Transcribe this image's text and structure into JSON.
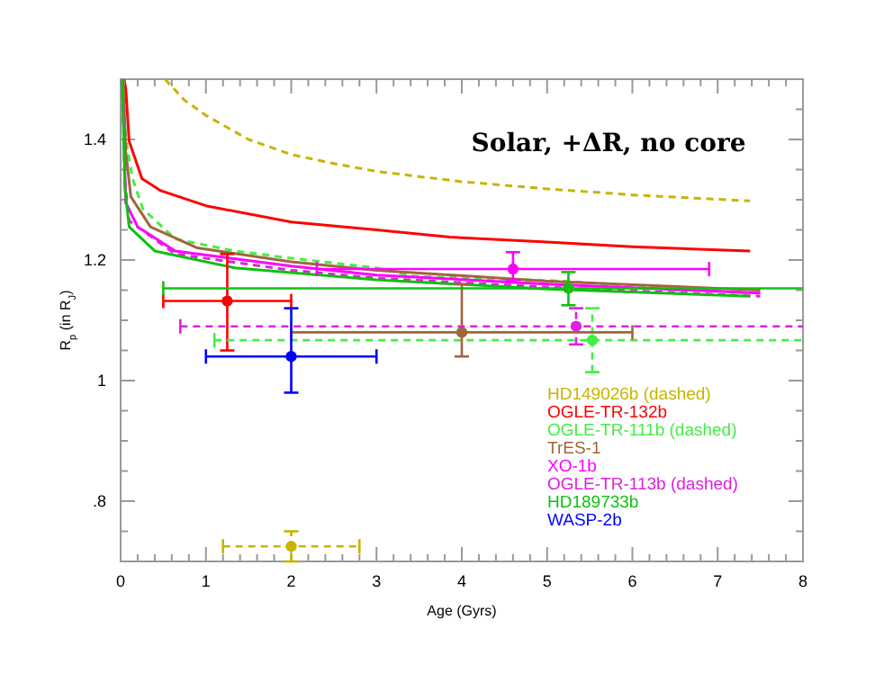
{
  "chart_data": {
    "type": "scatter",
    "xlabel": "Age (Gyrs)",
    "ylabel": "R$_{p}$ (in R$_{J}$)",
    "annotations": [
      "Solar, +ΔR, no core"
    ],
    "xlim": [
      0,
      8
    ],
    "ylim": [
      0.7,
      1.5
    ],
    "xticks": [
      0,
      {
        "value": 0.2,
        "label": null
      },
      {
        "value": 0.4,
        "label": null
      },
      {
        "value": 0.6,
        "label": null
      },
      {
        "value": 0.8,
        "label": null
      },
      1,
      {
        "value": 1.2,
        "label": null
      },
      {
        "value": 1.4,
        "label": null
      },
      {
        "value": 1.6,
        "label": null
      },
      {
        "value": 1.8,
        "label": null
      },
      2,
      {
        "value": 2.2,
        "label": null
      },
      {
        "value": 2.4,
        "label": null
      },
      {
        "value": 2.6,
        "label": null
      },
      {
        "value": 2.8,
        "label": null
      },
      3,
      {
        "value": 3.2,
        "label": null
      },
      {
        "value": 3.4,
        "label": null
      },
      {
        "value": 3.6,
        "label": null
      },
      {
        "value": 3.8,
        "label": null
      },
      4,
      {
        "value": 4.2,
        "label": null
      },
      {
        "value": 4.4,
        "label": null
      },
      {
        "value": 4.6,
        "label": null
      },
      {
        "value": 4.8,
        "label": null
      },
      5,
      {
        "value": 5.2,
        "label": null
      },
      {
        "value": 5.4,
        "label": null
      },
      {
        "value": 5.6,
        "label": null
      },
      {
        "value": 5.8,
        "label": null
      },
      6,
      {
        "value": 6.2,
        "label": null
      },
      {
        "value": 6.4,
        "label": null
      },
      {
        "value": 6.6,
        "label": null
      },
      {
        "value": 6.8,
        "label": null
      },
      7,
      {
        "value": 7.2,
        "label": null
      },
      {
        "value": 7.4,
        "label": null
      },
      {
        "value": 7.6,
        "label": null
      },
      {
        "value": 7.8,
        "label": null
      },
      8
    ],
    "yticks": [
      {
        "value": 0.75,
        "label": null
      },
      {
        "value": 0.8,
        "label": ".8"
      },
      {
        "value": 0.85,
        "label": null
      },
      {
        "value": 0.9,
        "label": null
      },
      {
        "value": 0.95,
        "label": null
      },
      1,
      {
        "value": 1.05,
        "label": null
      },
      {
        "value": 1.1,
        "label": null
      },
      {
        "value": 1.15,
        "label": null
      },
      1.2,
      {
        "value": 1.25,
        "label": null
      },
      {
        "value": 1.3,
        "label": null
      },
      {
        "value": 1.35,
        "label": null
      },
      1.4,
      {
        "value": 1.45,
        "label": null
      }
    ],
    "legend": "bottom right",
    "marker": "circle",
    "series": [
      {
        "type": "line",
        "marker": "none",
        "color": "#c8b400",
        "line_style": "dashed",
        "x": [
          0.52,
          0.75,
          1,
          1.5,
          2,
          2.5,
          3,
          4,
          5,
          6,
          7.38
        ],
        "values": [
          1.5,
          1.465,
          1.44,
          1.4,
          1.375,
          1.36,
          1.347,
          1.33,
          1.318,
          1.308,
          1.298
        ]
      },
      {
        "type": "line",
        "marker": "none",
        "color": "#ff0000",
        "line_style": "solid",
        "x": [
          0.04,
          0.06,
          0.1,
          0.25,
          0.47,
          1,
          2,
          3,
          3.86,
          5,
          6,
          7.38
        ],
        "values": [
          1.5,
          1.485,
          1.397,
          1.335,
          1.315,
          1.29,
          1.263,
          1.25,
          1.238,
          1.23,
          1.222,
          1.215
        ]
      },
      {
        "type": "line",
        "marker": "none",
        "color": "#44ee44",
        "line_style": "dashed",
        "x": [
          0.03,
          0.06,
          0.14,
          0.26,
          0.64,
          1.34,
          2,
          3,
          3.44,
          5.2,
          7.38
        ],
        "values": [
          1.5,
          1.4,
          1.335,
          1.285,
          1.235,
          1.215,
          1.203,
          1.187,
          1.173,
          1.165,
          1.145
        ]
      },
      {
        "type": "line",
        "marker": "none",
        "color": "#a0663c",
        "line_style": "solid",
        "x": [
          0.03,
          0.06,
          0.12,
          0.35,
          0.9,
          2,
          3,
          5,
          7.5
        ],
        "values": [
          1.5,
          1.38,
          1.305,
          1.255,
          1.22,
          1.197,
          1.183,
          1.165,
          1.15
        ]
      },
      {
        "type": "line",
        "marker": "none",
        "color": "#ff00ff",
        "line_style": "solid",
        "x": [
          0.02,
          0.06,
          0.2,
          0.64,
          2,
          3,
          5,
          7.5
        ],
        "values": [
          1.5,
          1.295,
          1.255,
          1.215,
          1.19,
          1.175,
          1.16,
          1.145
        ]
      },
      {
        "type": "line",
        "marker": "none",
        "color": "#e020e0",
        "line_style": "dashed",
        "x": [
          0.02,
          0.05,
          0.1,
          0.64,
          2,
          3,
          5,
          7.5
        ],
        "values": [
          1.5,
          1.33,
          1.265,
          1.21,
          1.183,
          1.17,
          1.155,
          1.14
        ]
      },
      {
        "type": "line",
        "marker": "none",
        "color": "#10c010",
        "line_style": "solid",
        "x": [
          0.02,
          0.05,
          0.1,
          0.4,
          1.34,
          3,
          5,
          7.38
        ],
        "values": [
          1.5,
          1.32,
          1.255,
          1.215,
          1.187,
          1.167,
          1.152,
          1.14
        ]
      },
      {
        "name": "HD149026b (dashed)",
        "color": "#c8b400",
        "line_style": "dashed",
        "x": [
          2
        ],
        "values": [
          0.725
        ],
        "errors": [
          [
            0.7,
            0.75
          ]
        ],
        "xerrors": [
          [
            1.2,
            2.8
          ]
        ]
      },
      {
        "name": "OGLE-TR-132b",
        "color": "#ff0000",
        "line_style": "solid",
        "x": [
          1.25
        ],
        "values": [
          1.132
        ],
        "errors": [
          [
            1.05,
            1.21
          ]
        ],
        "xerrors": [
          [
            0.5,
            2.0
          ]
        ]
      },
      {
        "name": "OGLE-TR-111b (dashed)",
        "color": "#44ee44",
        "line_style": "dashed",
        "x": [
          5.53
        ],
        "values": [
          1.067
        ],
        "errors": [
          [
            1.014,
            1.12
          ]
        ],
        "xerrors": [
          [
            1.1,
            8
          ]
        ]
      },
      {
        "name": "TrES-1",
        "color": "#a0663c",
        "line_style": "solid",
        "x": [
          4
        ],
        "values": [
          1.08
        ],
        "errors": [
          [
            1.04,
            1.16
          ]
        ],
        "xerrors": [
          [
            2.0,
            6.0
          ]
        ]
      },
      {
        "name": "XO-1b",
        "color": "#ff00ff",
        "line_style": "solid",
        "x": [
          4.6
        ],
        "values": [
          1.185
        ],
        "errors": [
          [
            1.167,
            1.213
          ]
        ],
        "xerrors": [
          [
            2.3,
            6.9
          ]
        ]
      },
      {
        "name": "OGLE-TR-113b (dashed)",
        "color": "#e020e0",
        "line_style": "dashed",
        "x": [
          5.34
        ],
        "values": [
          1.09
        ],
        "errors": [
          [
            1.06,
            1.12
          ]
        ],
        "xerrors": [
          [
            0.7,
            8
          ]
        ]
      },
      {
        "name": "HD189733b",
        "color": "#10c010",
        "line_style": "solid",
        "x": [
          5.25
        ],
        "values": [
          1.153
        ],
        "errors": [
          [
            1.125,
            1.18
          ]
        ],
        "xerrors": [
          [
            0.5,
            8
          ]
        ]
      },
      {
        "name": "WASP-2b",
        "color": "#0000ff",
        "line_style": "solid",
        "x": [
          2
        ],
        "values": [
          1.04
        ],
        "errors": [
          [
            0.98,
            1.12
          ]
        ],
        "xerrors": [
          [
            1.0,
            3.0
          ]
        ]
      }
    ]
  }
}
